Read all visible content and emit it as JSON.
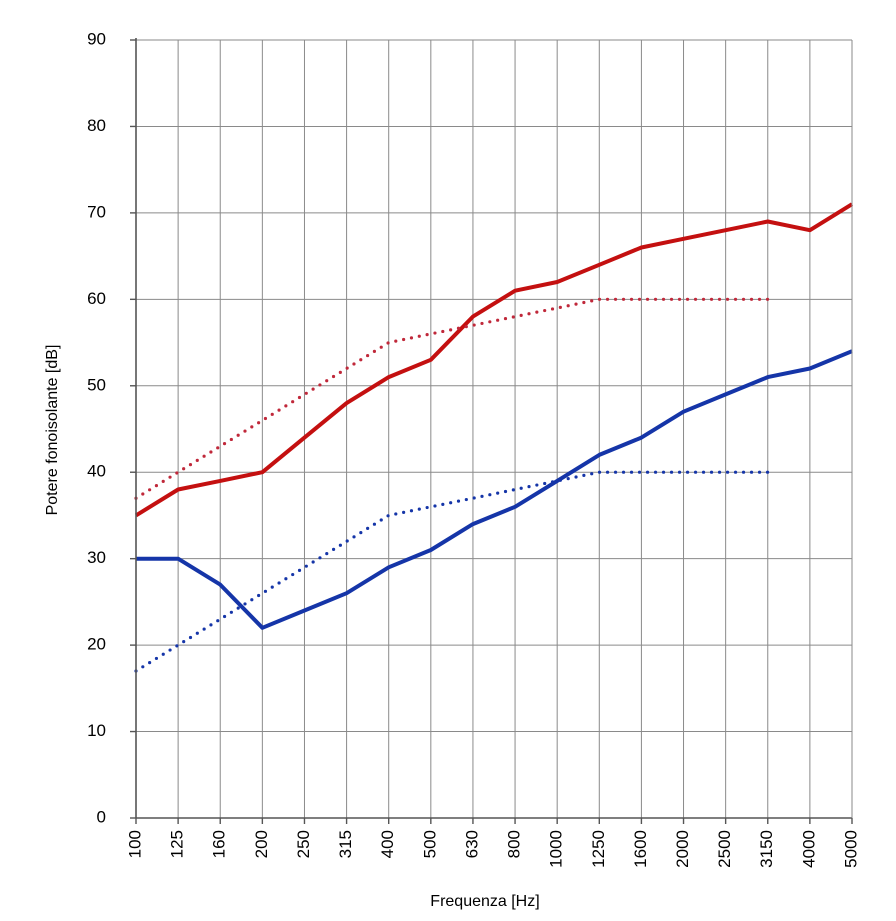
{
  "chart_data": {
    "type": "line",
    "xlabel": "Frequenza [Hz]",
    "ylabel": "Potere fonoisolante [dB]",
    "ylim": [
      0,
      90
    ],
    "y_ticks": [
      "0",
      "10",
      "20",
      "30",
      "40",
      "50",
      "60",
      "70",
      "80",
      "90"
    ],
    "categories": [
      "100",
      "125",
      "160",
      "200",
      "250",
      "315",
      "400",
      "500",
      "630",
      "800",
      "1000",
      "1250",
      "1600",
      "2000",
      "2500",
      "3150",
      "4000",
      "5000"
    ],
    "grid": true,
    "series": [
      {
        "color": "#c41010",
        "style": "solid",
        "values": [
          35,
          38,
          39,
          40,
          44,
          48,
          51,
          53,
          58,
          61,
          62,
          64,
          66,
          67,
          68,
          69,
          68,
          71
        ]
      },
      {
        "color": "#c0283a",
        "style": "dotted",
        "values": [
          37,
          40,
          43,
          46,
          49,
          52,
          55,
          56,
          57,
          58,
          59,
          60,
          60,
          60,
          60,
          60,
          null,
          null
        ]
      },
      {
        "color": "#1535a8",
        "style": "solid",
        "values": [
          30,
          30,
          27,
          22,
          24,
          26,
          29,
          31,
          34,
          36,
          39,
          42,
          44,
          47,
          49,
          51,
          52,
          54
        ]
      },
      {
        "color": "#1535a8",
        "style": "dotted",
        "values": [
          17,
          20,
          23,
          26,
          29,
          32,
          35,
          36,
          37,
          38,
          39,
          40,
          40,
          40,
          40,
          40,
          null,
          null
        ]
      }
    ]
  }
}
